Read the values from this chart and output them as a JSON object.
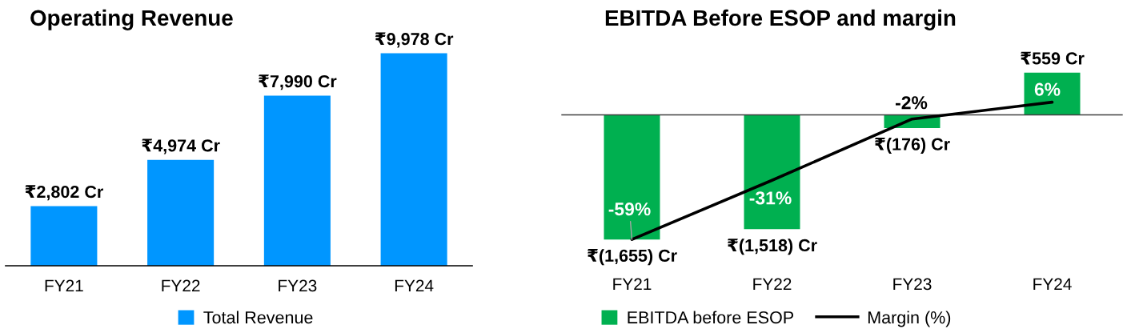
{
  "chart_data": [
    {
      "type": "bar",
      "title": "Operating Revenue",
      "categories": [
        "FY21",
        "FY22",
        "FY23",
        "FY24"
      ],
      "series": [
        {
          "name": "Total Revenue",
          "color": "#0096ff",
          "values": [
            2802,
            4974,
            7990,
            9978
          ],
          "value_labels": [
            "₹2,802 Cr",
            "₹4,974 Cr",
            "₹7,990 Cr",
            "₹9,978 Cr"
          ]
        }
      ],
      "tick_labels": "x",
      "legend": "bottom"
    },
    {
      "type": "bar",
      "title": "EBITDA Before ESOP and margin",
      "categories": [
        "FY21",
        "FY22",
        "FY23",
        "FY24"
      ],
      "series": [
        {
          "name": "EBITDA before ESOP",
          "color": "#00b050",
          "values": [
            -1655,
            -1518,
            -176,
            559
          ],
          "value_labels": [
            "₹(1,655) Cr",
            "₹(1,518) Cr",
            "₹(176) Cr",
            "₹559 Cr"
          ]
        },
        {
          "name": "Margin (%)",
          "type": "line",
          "axis": "y2",
          "color": "#000000",
          "values": [
            -59,
            -31,
            -2,
            6
          ],
          "value_labels": [
            "-59%",
            "-31%",
            "-2%",
            "6%"
          ]
        }
      ],
      "tick_labels": "x",
      "legend": "bottom"
    }
  ]
}
